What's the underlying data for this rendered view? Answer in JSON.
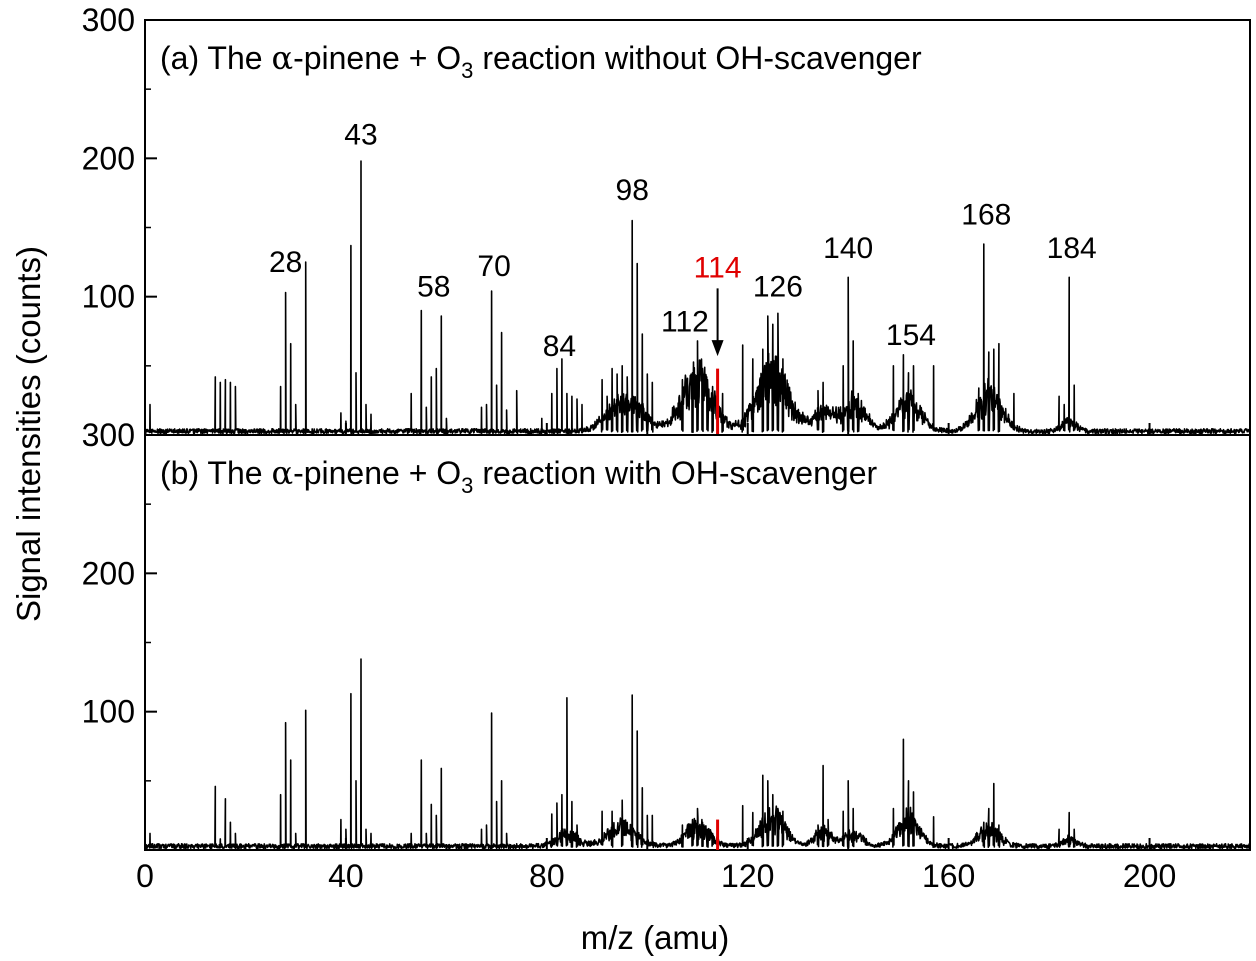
{
  "figure": {
    "ylabel": "Signal intensities (counts)",
    "xlabel": "m/z (amu)"
  },
  "chart_data": [
    {
      "type": "line",
      "panel": "a",
      "title_parts": {
        "pre": "(a) The ",
        "alpha": "α",
        "mid": "-pinene + O",
        "sub": "3",
        "post": " reaction without OH-scavenger"
      },
      "xlim": [
        0,
        220
      ],
      "ylim": [
        0,
        300
      ],
      "y_tick_labels": [
        "100",
        "200",
        "300"
      ],
      "x_tick_labels": [],
      "series": [
        {
          "color": "#000000"
        }
      ],
      "peaks": [
        [
          1,
          22
        ],
        [
          14,
          42
        ],
        [
          15,
          38
        ],
        [
          16,
          40
        ],
        [
          17,
          38
        ],
        [
          18,
          35
        ],
        [
          27,
          35
        ],
        [
          28,
          103
        ],
        [
          29,
          66
        ],
        [
          30,
          22
        ],
        [
          32,
          125
        ],
        [
          39,
          16
        ],
        [
          40,
          10
        ],
        [
          41,
          137
        ],
        [
          42,
          45
        ],
        [
          43,
          198
        ],
        [
          44,
          22
        ],
        [
          45,
          15
        ],
        [
          53,
          30
        ],
        [
          55,
          90
        ],
        [
          56,
          20
        ],
        [
          57,
          42
        ],
        [
          58,
          48
        ],
        [
          59,
          86
        ],
        [
          60,
          12
        ],
        [
          67,
          20
        ],
        [
          68,
          22
        ],
        [
          69,
          104
        ],
        [
          70,
          36
        ],
        [
          71,
          74
        ],
        [
          72,
          18
        ],
        [
          74,
          32
        ],
        [
          79,
          12
        ],
        [
          81,
          30
        ],
        [
          82,
          48
        ],
        [
          83,
          55
        ],
        [
          84,
          30
        ],
        [
          85,
          28
        ],
        [
          86,
          26
        ],
        [
          87,
          22
        ],
        [
          91,
          40
        ],
        [
          92,
          28
        ],
        [
          93,
          48
        ],
        [
          94,
          44
        ],
        [
          95,
          50
        ],
        [
          96,
          42
        ],
        [
          97,
          155
        ],
        [
          98,
          124
        ],
        [
          99,
          73
        ],
        [
          100,
          44
        ],
        [
          101,
          38
        ],
        [
          107,
          40
        ],
        [
          109,
          45
        ],
        [
          110,
          68
        ],
        [
          111,
          48
        ],
        [
          112,
          40
        ],
        [
          113,
          35
        ],
        [
          115,
          30
        ],
        [
          119,
          65
        ],
        [
          121,
          55
        ],
        [
          123,
          62
        ],
        [
          124,
          86
        ],
        [
          125,
          80
        ],
        [
          126,
          88
        ],
        [
          127,
          55
        ],
        [
          134,
          32
        ],
        [
          135,
          38
        ],
        [
          139,
          50
        ],
        [
          140,
          114
        ],
        [
          141,
          68
        ],
        [
          142,
          30
        ],
        [
          149,
          50
        ],
        [
          151,
          58
        ],
        [
          152,
          45
        ],
        [
          153,
          50
        ],
        [
          157,
          50
        ],
        [
          166,
          34
        ],
        [
          167,
          138
        ],
        [
          168,
          60
        ],
        [
          169,
          62
        ],
        [
          170,
          66
        ],
        [
          173,
          30
        ],
        [
          182,
          28
        ],
        [
          183,
          22
        ],
        [
          184,
          114
        ],
        [
          185,
          36
        ]
      ],
      "humps": [
        [
          93,
          12,
          3.5
        ],
        [
          97,
          20,
          4
        ],
        [
          110,
          42,
          4.5
        ],
        [
          125,
          46,
          4.5
        ],
        [
          135,
          14,
          3
        ],
        [
          141,
          22,
          3.5
        ],
        [
          152,
          24,
          3.5
        ],
        [
          168,
          30,
          3.5
        ],
        [
          184,
          8,
          2
        ]
      ],
      "marker": {
        "x": 114,
        "y": 48,
        "color": "#e00000"
      },
      "annotations": [
        {
          "text": "28",
          "x": 28,
          "y": 118,
          "color": "#000000"
        },
        {
          "text": "43",
          "x": 43,
          "y": 210,
          "color": "#000000"
        },
        {
          "text": "58",
          "x": 57.5,
          "y": 100,
          "color": "#000000"
        },
        {
          "text": "70",
          "x": 69.5,
          "y": 115,
          "color": "#000000"
        },
        {
          "text": "84",
          "x": 82.5,
          "y": 57,
          "color": "#000000"
        },
        {
          "text": "98",
          "x": 97,
          "y": 170,
          "color": "#000000"
        },
        {
          "text": "112",
          "x": 107.5,
          "y": 75,
          "color": "#000000"
        },
        {
          "text": "114",
          "x": 114,
          "y": 114,
          "color": "#e00000"
        },
        {
          "text": "126",
          "x": 126,
          "y": 100,
          "color": "#000000"
        },
        {
          "text": "140",
          "x": 140,
          "y": 128,
          "color": "#000000"
        },
        {
          "text": "154",
          "x": 152.5,
          "y": 65,
          "color": "#000000"
        },
        {
          "text": "168",
          "x": 167.5,
          "y": 152,
          "color": "#000000"
        },
        {
          "text": "184",
          "x": 184.5,
          "y": 128,
          "color": "#000000"
        }
      ],
      "arrow": {
        "x": 114,
        "from_y": 106,
        "to_y": 57
      }
    },
    {
      "type": "line",
      "panel": "b",
      "title_parts": {
        "pre": "(b) The ",
        "alpha": "α",
        "mid": "-pinene + O",
        "sub": "3",
        "post": " reaction with OH-scavenger"
      },
      "xlim": [
        0,
        220
      ],
      "ylim": [
        0,
        300
      ],
      "y_tick_labels": [
        "100",
        "200",
        "300"
      ],
      "x_tick_labels": [
        "0",
        "40",
        "80",
        "120",
        "160",
        "200"
      ],
      "series": [
        {
          "color": "#000000"
        }
      ],
      "peaks": [
        [
          1,
          12
        ],
        [
          14,
          46
        ],
        [
          15,
          8
        ],
        [
          16,
          37
        ],
        [
          17,
          20
        ],
        [
          18,
          12
        ],
        [
          27,
          40
        ],
        [
          28,
          92
        ],
        [
          29,
          65
        ],
        [
          30,
          12
        ],
        [
          32,
          101
        ],
        [
          39,
          22
        ],
        [
          40,
          15
        ],
        [
          41,
          113
        ],
        [
          42,
          50
        ],
        [
          43,
          138
        ],
        [
          44,
          15
        ],
        [
          45,
          12
        ],
        [
          53,
          12
        ],
        [
          55,
          65
        ],
        [
          56,
          12
        ],
        [
          57,
          33
        ],
        [
          58,
          25
        ],
        [
          59,
          59
        ],
        [
          67,
          15
        ],
        [
          68,
          18
        ],
        [
          69,
          99
        ],
        [
          70,
          35
        ],
        [
          71,
          50
        ],
        [
          72,
          12
        ],
        [
          81,
          26
        ],
        [
          82,
          34
        ],
        [
          83,
          40
        ],
        [
          84,
          110
        ],
        [
          85,
          35
        ],
        [
          86,
          18
        ],
        [
          91,
          28
        ],
        [
          93,
          28
        ],
        [
          95,
          36
        ],
        [
          97,
          112
        ],
        [
          98,
          86
        ],
        [
          99,
          45
        ],
        [
          100,
          25
        ],
        [
          101,
          25
        ],
        [
          107,
          18
        ],
        [
          109,
          22
        ],
        [
          110,
          30
        ],
        [
          111,
          20
        ],
        [
          112,
          15
        ],
        [
          113,
          12
        ],
        [
          119,
          32
        ],
        [
          121,
          27
        ],
        [
          123,
          54
        ],
        [
          124,
          50
        ],
        [
          125,
          40
        ],
        [
          126,
          30
        ],
        [
          127,
          28
        ],
        [
          134,
          18
        ],
        [
          135,
          61
        ],
        [
          136,
          22
        ],
        [
          139,
          28
        ],
        [
          140,
          50
        ],
        [
          141,
          30
        ],
        [
          149,
          30
        ],
        [
          151,
          80
        ],
        [
          152,
          50
        ],
        [
          153,
          42
        ],
        [
          157,
          24
        ],
        [
          167,
          20
        ],
        [
          168,
          30
        ],
        [
          169,
          48
        ],
        [
          170,
          18
        ],
        [
          182,
          15
        ],
        [
          184,
          27
        ],
        [
          185,
          15
        ]
      ],
      "humps": [
        [
          84,
          10,
          3
        ],
        [
          95,
          16,
          4
        ],
        [
          110,
          16,
          3.5
        ],
        [
          125,
          24,
          3.5
        ],
        [
          135,
          12,
          2.5
        ],
        [
          141,
          10,
          2.5
        ],
        [
          152,
          22,
          3
        ],
        [
          168,
          14,
          3
        ],
        [
          184,
          6,
          2
        ]
      ],
      "marker": {
        "x": 114,
        "y": 22,
        "color": "#e00000"
      }
    }
  ]
}
